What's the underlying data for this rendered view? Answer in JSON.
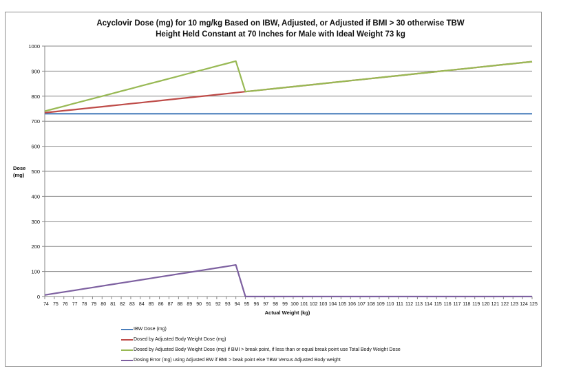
{
  "chart_data": {
    "type": "line",
    "title": "Acyclovir Dose (mg) for 10 mg/kg Based on IBW, Adjusted, or  Adjusted if BMI > 30 otherwise TBW",
    "subtitle": "Height Held Constant at 70 Inches for Male with Ideal Weight 73 kg",
    "xlabel": "Actual Weight (kg)",
    "ylabel": "Dose (mg)",
    "ylabel_lines": [
      "Dose",
      "(mg)"
    ],
    "ylim": [
      0,
      1000
    ],
    "yticks": [
      0,
      100,
      200,
      300,
      400,
      500,
      600,
      700,
      800,
      900,
      1000
    ],
    "grid": true,
    "legend_position": "bottom",
    "x": [
      74,
      75,
      76,
      77,
      78,
      79,
      80,
      81,
      82,
      83,
      84,
      85,
      86,
      87,
      88,
      89,
      90,
      91,
      92,
      93,
      94,
      95,
      96,
      97,
      98,
      99,
      100,
      101,
      102,
      103,
      104,
      105,
      106,
      107,
      108,
      109,
      110,
      111,
      112,
      113,
      114,
      115,
      116,
      117,
      118,
      119,
      120,
      121,
      122,
      123,
      124,
      125
    ],
    "series": [
      {
        "name": "IBW Dose (mg)",
        "color": "#4a7ebb",
        "values": [
          730,
          730,
          730,
          730,
          730,
          730,
          730,
          730,
          730,
          730,
          730,
          730,
          730,
          730,
          730,
          730,
          730,
          730,
          730,
          730,
          730,
          730,
          730,
          730,
          730,
          730,
          730,
          730,
          730,
          730,
          730,
          730,
          730,
          730,
          730,
          730,
          730,
          730,
          730,
          730,
          730,
          730,
          730,
          730,
          730,
          730,
          730,
          730,
          730,
          730,
          730,
          730
        ]
      },
      {
        "name": "Dosed by Adjusted Body Weight  Dose (mg)",
        "color": "#be4b48",
        "values": [
          734,
          738,
          742,
          746,
          750,
          754,
          758,
          762,
          766,
          770,
          774,
          778,
          782,
          786,
          790,
          794,
          798,
          802,
          806,
          810,
          814,
          818,
          822,
          826,
          830,
          834,
          838,
          842,
          846,
          850,
          854,
          858,
          862,
          866,
          870,
          874,
          878,
          882,
          886,
          890,
          894,
          898,
          902,
          906,
          910,
          914,
          918,
          922,
          926,
          930,
          934,
          938
        ]
      },
      {
        "name": "Dosed by Adjusted Body Weight Dose (mg) if BMI > break point, if less than or equal  break point use Total Body Weight Dose",
        "color": "#98b954",
        "values": [
          740,
          750,
          760,
          770,
          780,
          790,
          800,
          810,
          820,
          830,
          840,
          850,
          860,
          870,
          880,
          890,
          900,
          910,
          920,
          930,
          940,
          818,
          822,
          826,
          830,
          834,
          838,
          842,
          846,
          850,
          854,
          858,
          862,
          866,
          870,
          874,
          878,
          882,
          886,
          890,
          894,
          898,
          902,
          906,
          910,
          914,
          918,
          922,
          926,
          930,
          934,
          938
        ]
      },
      {
        "name": "Dosing Error (mg) using Adjusted BW if BMI > beak point else TBW Versus Adjusted Body weight",
        "color": "#7d60a0",
        "values": [
          6,
          12,
          18,
          24,
          30,
          36,
          42,
          48,
          54,
          60,
          66,
          72,
          78,
          84,
          90,
          96,
          102,
          108,
          114,
          120,
          126,
          0,
          0,
          0,
          0,
          0,
          0,
          0,
          0,
          0,
          0,
          0,
          0,
          0,
          0,
          0,
          0,
          0,
          0,
          0,
          0,
          0,
          0,
          0,
          0,
          0,
          0,
          0,
          0,
          0,
          0,
          0
        ]
      }
    ]
  }
}
